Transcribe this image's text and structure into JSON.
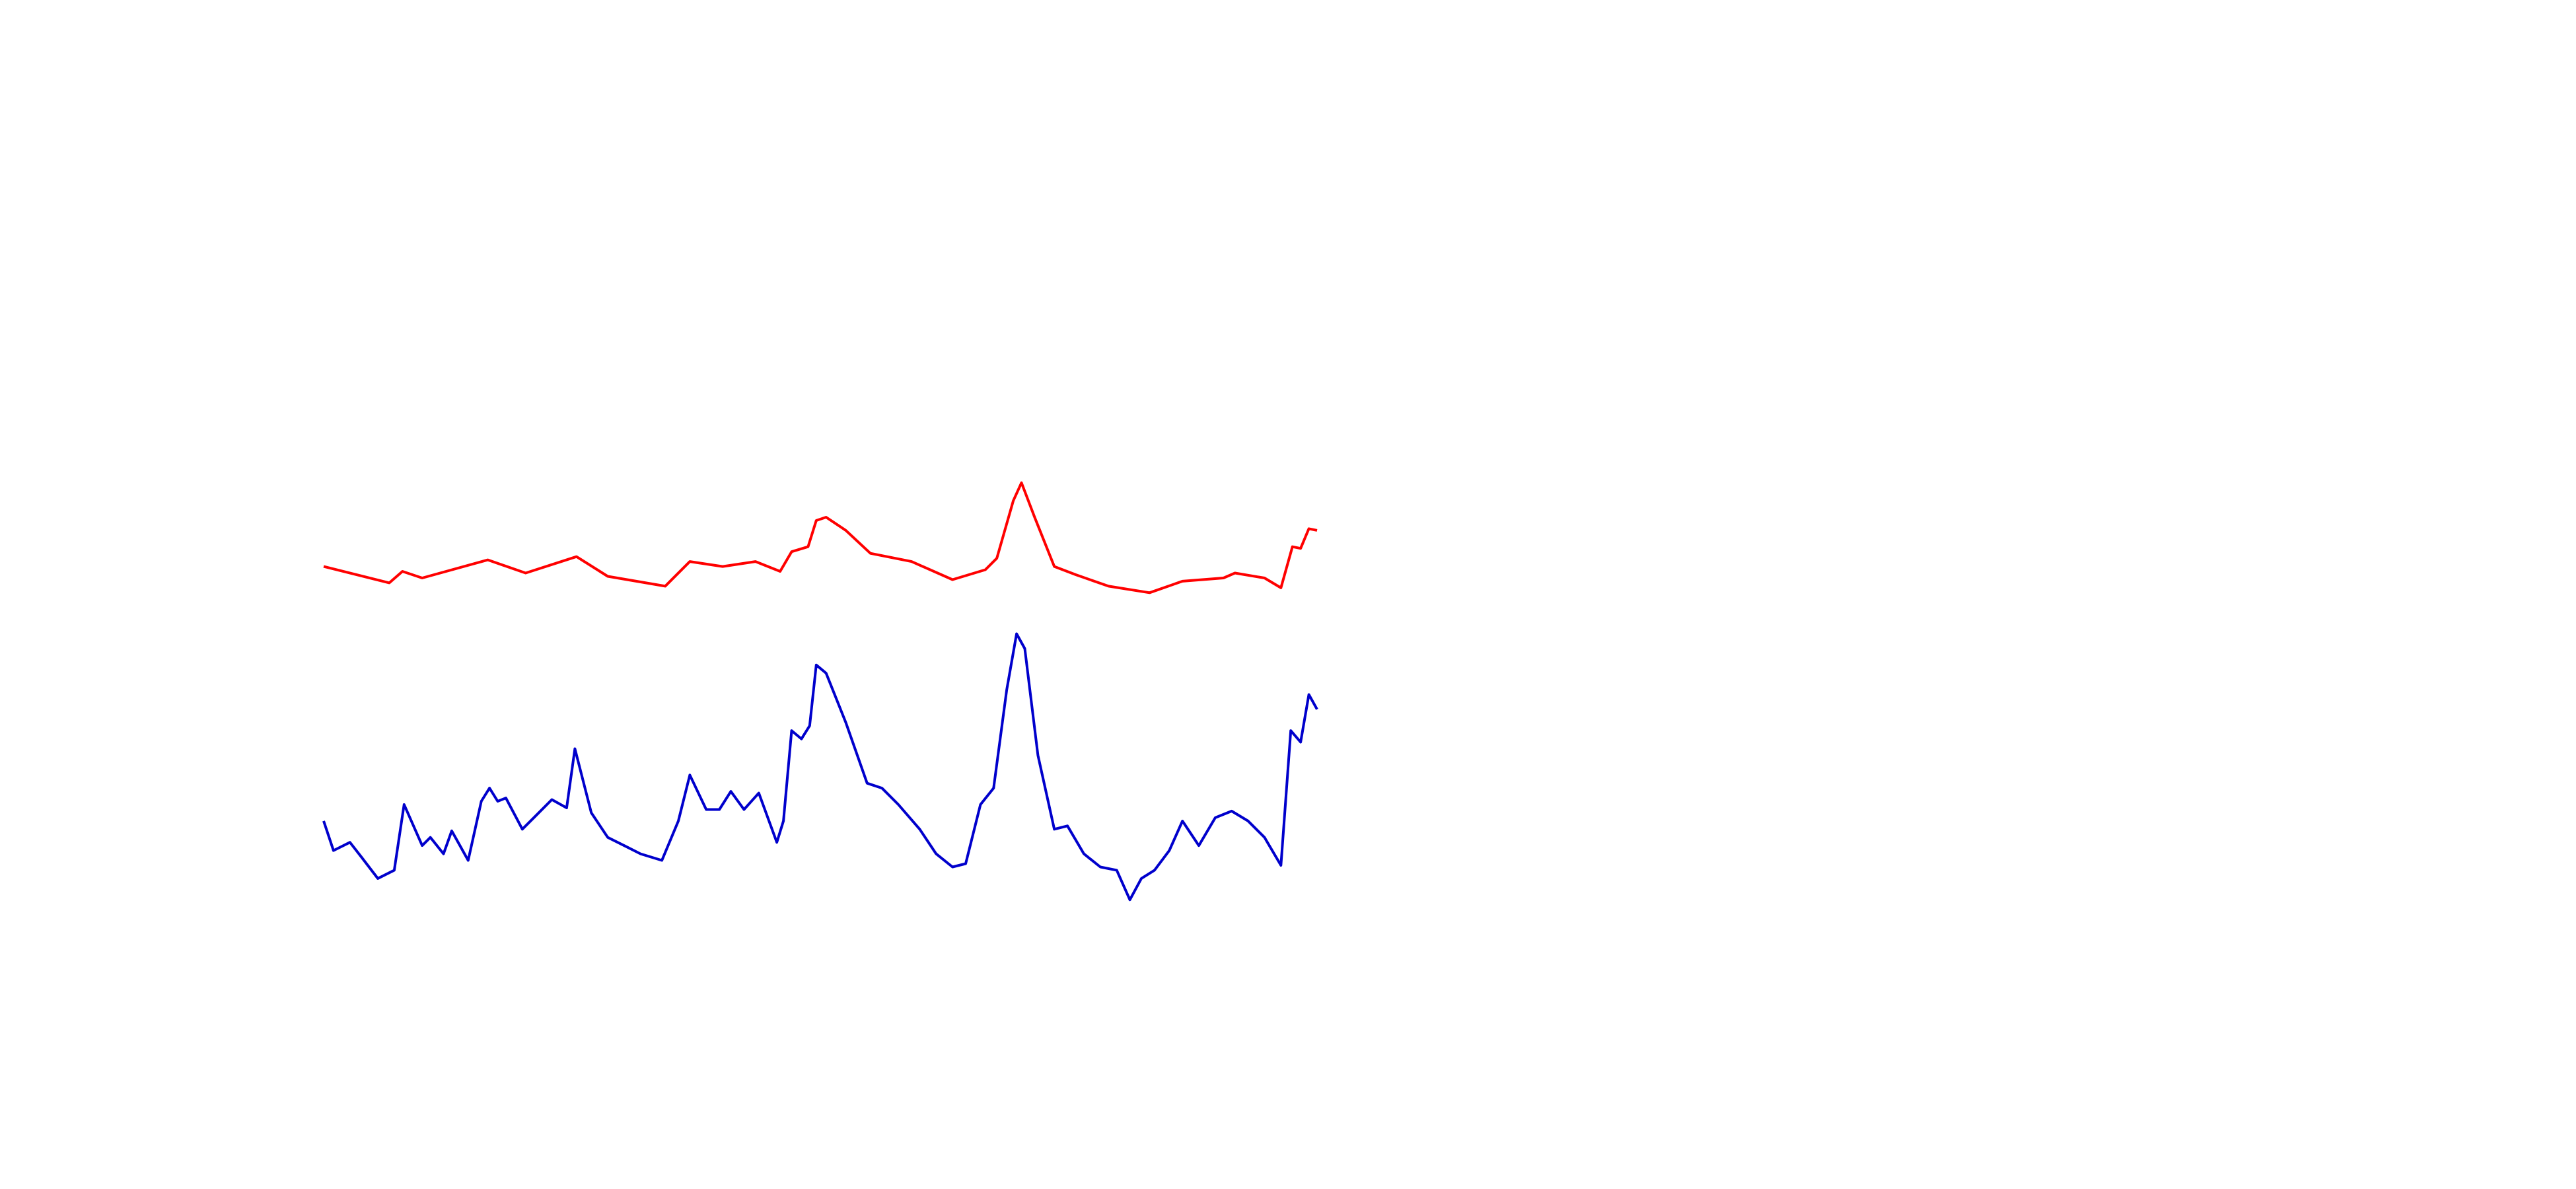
{
  "chart_data": {
    "type": "line",
    "xlim": [
      197,
      802
    ],
    "ylim": [
      0,
      280
    ],
    "series": [
      {
        "color": "#ff0000",
        "x": [
          197,
          237,
          245,
          257,
          297,
          320,
          351,
          370,
          405,
          420,
          440,
          460,
          475,
          482,
          492,
          497,
          503,
          515,
          530,
          555,
          580,
          600,
          607,
          617,
          622,
          630,
          642,
          655,
          675,
          700,
          720,
          745,
          752,
          770,
          780,
          787,
          792,
          797,
          802
        ],
        "values": [
          215,
          205,
          212,
          208,
          219,
          211,
          221,
          209,
          203,
          218,
          215,
          218,
          212,
          224,
          227,
          243,
          245,
          237,
          223,
          218,
          207,
          213,
          220,
          255,
          266,
          245,
          215,
          210,
          203,
          199,
          206,
          208,
          211,
          208,
          202,
          227,
          226,
          238,
          237
        ]
      },
      {
        "color": "#0000cc",
        "x": [
          197,
          203,
          213,
          220,
          230,
          240,
          246,
          257,
          262,
          270,
          275,
          285,
          293,
          298,
          303,
          308,
          318,
          325,
          336,
          345,
          350,
          360,
          370,
          380,
          390,
          403,
          413,
          420,
          430,
          438,
          445,
          453,
          462,
          473,
          477,
          482,
          488,
          493,
          497,
          503,
          515,
          528,
          537,
          547,
          560,
          570,
          580,
          588,
          597,
          605,
          613,
          619,
          624,
          632,
          642,
          650,
          660,
          670,
          680,
          688,
          695,
          703,
          712,
          720,
          730,
          740,
          750,
          760,
          770,
          780,
          786,
          792,
          797,
          802
        ],
        "values": [
          60,
          42,
          47,
          38,
          25,
          30,
          70,
          45,
          50,
          40,
          54,
          36,
          72,
          80,
          72,
          74,
          55,
          62,
          73,
          68,
          104,
          65,
          50,
          45,
          40,
          36,
          60,
          88,
          67,
          67,
          78,
          67,
          77,
          47,
          60,
          115,
          110,
          118,
          155,
          150,
          120,
          83,
          80,
          70,
          55,
          40,
          32,
          34,
          70,
          80,
          140,
          174,
          165,
          100,
          55,
          57,
          40,
          32,
          30,
          12,
          25,
          30,
          42,
          60,
          45,
          62,
          66,
          60,
          50,
          33,
          115,
          108,
          137,
          128
        ]
      }
    ]
  }
}
